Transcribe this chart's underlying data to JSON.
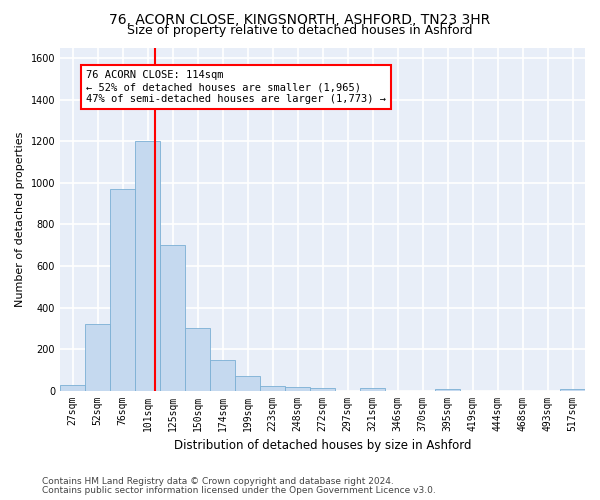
{
  "title_line1": "76, ACORN CLOSE, KINGSNORTH, ASHFORD, TN23 3HR",
  "title_line2": "Size of property relative to detached houses in Ashford",
  "xlabel": "Distribution of detached houses by size in Ashford",
  "ylabel": "Number of detached properties",
  "bar_labels": [
    "27sqm",
    "52sqm",
    "76sqm",
    "101sqm",
    "125sqm",
    "150sqm",
    "174sqm",
    "199sqm",
    "223sqm",
    "248sqm",
    "272sqm",
    "297sqm",
    "321sqm",
    "346sqm",
    "370sqm",
    "395sqm",
    "419sqm",
    "444sqm",
    "468sqm",
    "493sqm",
    "517sqm"
  ],
  "bar_values": [
    30,
    320,
    970,
    1200,
    700,
    305,
    150,
    70,
    25,
    20,
    15,
    0,
    15,
    0,
    0,
    10,
    0,
    0,
    0,
    0,
    10
  ],
  "bar_color": "#c5d9ef",
  "bar_edge_color": "#7bafd4",
  "red_line_x": 3.3,
  "annotation_text": "76 ACORN CLOSE: 114sqm\n← 52% of detached houses are smaller (1,965)\n47% of semi-detached houses are larger (1,773) →",
  "annotation_box_color": "white",
  "annotation_box_edge_color": "red",
  "ylim": [
    0,
    1650
  ],
  "yticks": [
    0,
    200,
    400,
    600,
    800,
    1000,
    1200,
    1400,
    1600
  ],
  "background_color": "#e8eef8",
  "grid_color": "white",
  "footer_line1": "Contains HM Land Registry data © Crown copyright and database right 2024.",
  "footer_line2": "Contains public sector information licensed under the Open Government Licence v3.0.",
  "title_fontsize": 10,
  "subtitle_fontsize": 9,
  "xlabel_fontsize": 8.5,
  "ylabel_fontsize": 8,
  "tick_fontsize": 7,
  "annotation_fontsize": 7.5,
  "footer_fontsize": 6.5
}
